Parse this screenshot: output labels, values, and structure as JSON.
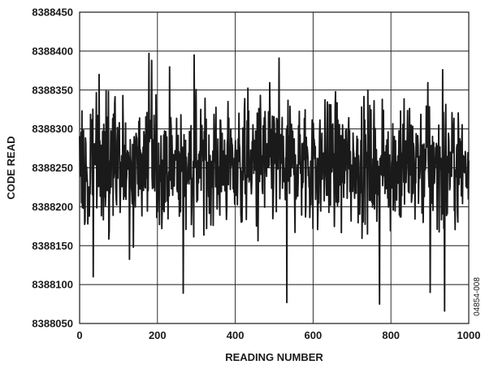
{
  "chart_data": {
    "type": "line",
    "xlabel": "READING NUMBER",
    "ylabel": "CODE READ",
    "xlim": [
      0,
      1000
    ],
    "ylim": [
      8388050,
      8388450
    ],
    "xticks": [
      "0",
      "200",
      "400",
      "600",
      "800",
      "1000"
    ],
    "yticks": [
      "8388050",
      "8388100",
      "8388150",
      "8388200",
      "8388250",
      "8388300",
      "8388350",
      "8388400",
      "8388450"
    ],
    "grid": true,
    "series": [
      {
        "count": 1000,
        "mean": 8388255,
        "std": 40,
        "max": 8388397,
        "min": 8388066,
        "peaks": [
          {
            "x": 178,
            "y": 8388397
          },
          {
            "x": 294,
            "y": 8388395
          },
          {
            "x": 512,
            "y": 8388391
          },
          {
            "x": 185,
            "y": 8388388
          },
          {
            "x": 50,
            "y": 8388370
          },
          {
            "x": 932,
            "y": 8388376
          },
          {
            "x": 266,
            "y": 8388089
          },
          {
            "x": 35,
            "y": 8388110
          },
          {
            "x": 770,
            "y": 8388075
          },
          {
            "x": 532,
            "y": 8388077
          },
          {
            "x": 937,
            "y": 8388066
          },
          {
            "x": 900,
            "y": 8388090
          }
        ]
      }
    ],
    "side_code": "04854-008",
    "line_color": "#1a1a1a",
    "grid_color": "#1a1a1a"
  }
}
